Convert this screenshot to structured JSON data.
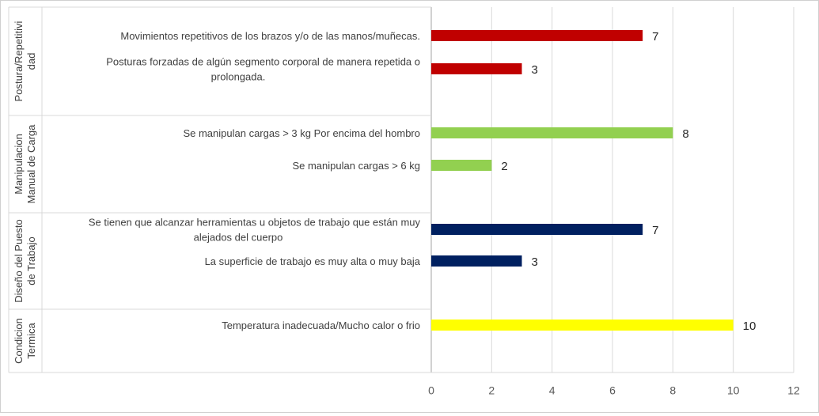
{
  "chart_data": {
    "type": "bar",
    "orientation": "horizontal",
    "title": "",
    "xlabel": "",
    "ylabel": "",
    "xlim": [
      0,
      12
    ],
    "x_ticks": [
      0,
      2,
      4,
      6,
      8,
      10,
      12
    ],
    "grid": "vertical",
    "legend": "none",
    "groups": [
      {
        "name": [
          "Postura/Repetitivi",
          "dad"
        ],
        "color": "#C00000",
        "items": [
          {
            "label": [
              "Movimientos repetitivos de los brazos y/o de las manos/muñecas."
            ],
            "value": 7
          },
          {
            "label": [
              "Posturas forzadas de algún segmento corporal de manera repetida o",
              "prolongada."
            ],
            "value": 3
          }
        ]
      },
      {
        "name": [
          "Manipulacion",
          "Manual de Carga"
        ],
        "color": "#92D050",
        "items": [
          {
            "label": [
              "Se manipulan cargas > 3 kg  Por encima del hombro"
            ],
            "value": 8
          },
          {
            "label": [
              "Se manipulan cargas > 6 kg"
            ],
            "value": 2
          }
        ]
      },
      {
        "name": [
          "Diseño del Puesto",
          "de Trabajo"
        ],
        "color": "#002060",
        "items": [
          {
            "label": [
              "Se tienen que alcanzar herramientas u objetos de trabajo que están muy",
              "alejados del  cuerpo"
            ],
            "value": 7
          },
          {
            "label": [
              "La superficie de trabajo es muy alta o muy baja"
            ],
            "value": 3
          }
        ]
      },
      {
        "name": [
          "Condicion",
          "Termica"
        ],
        "color": "#FFFF00",
        "items": [
          {
            "label": [
              "Temperatura inadecuada/Mucho calor o frio"
            ],
            "value": 10
          }
        ]
      }
    ]
  }
}
